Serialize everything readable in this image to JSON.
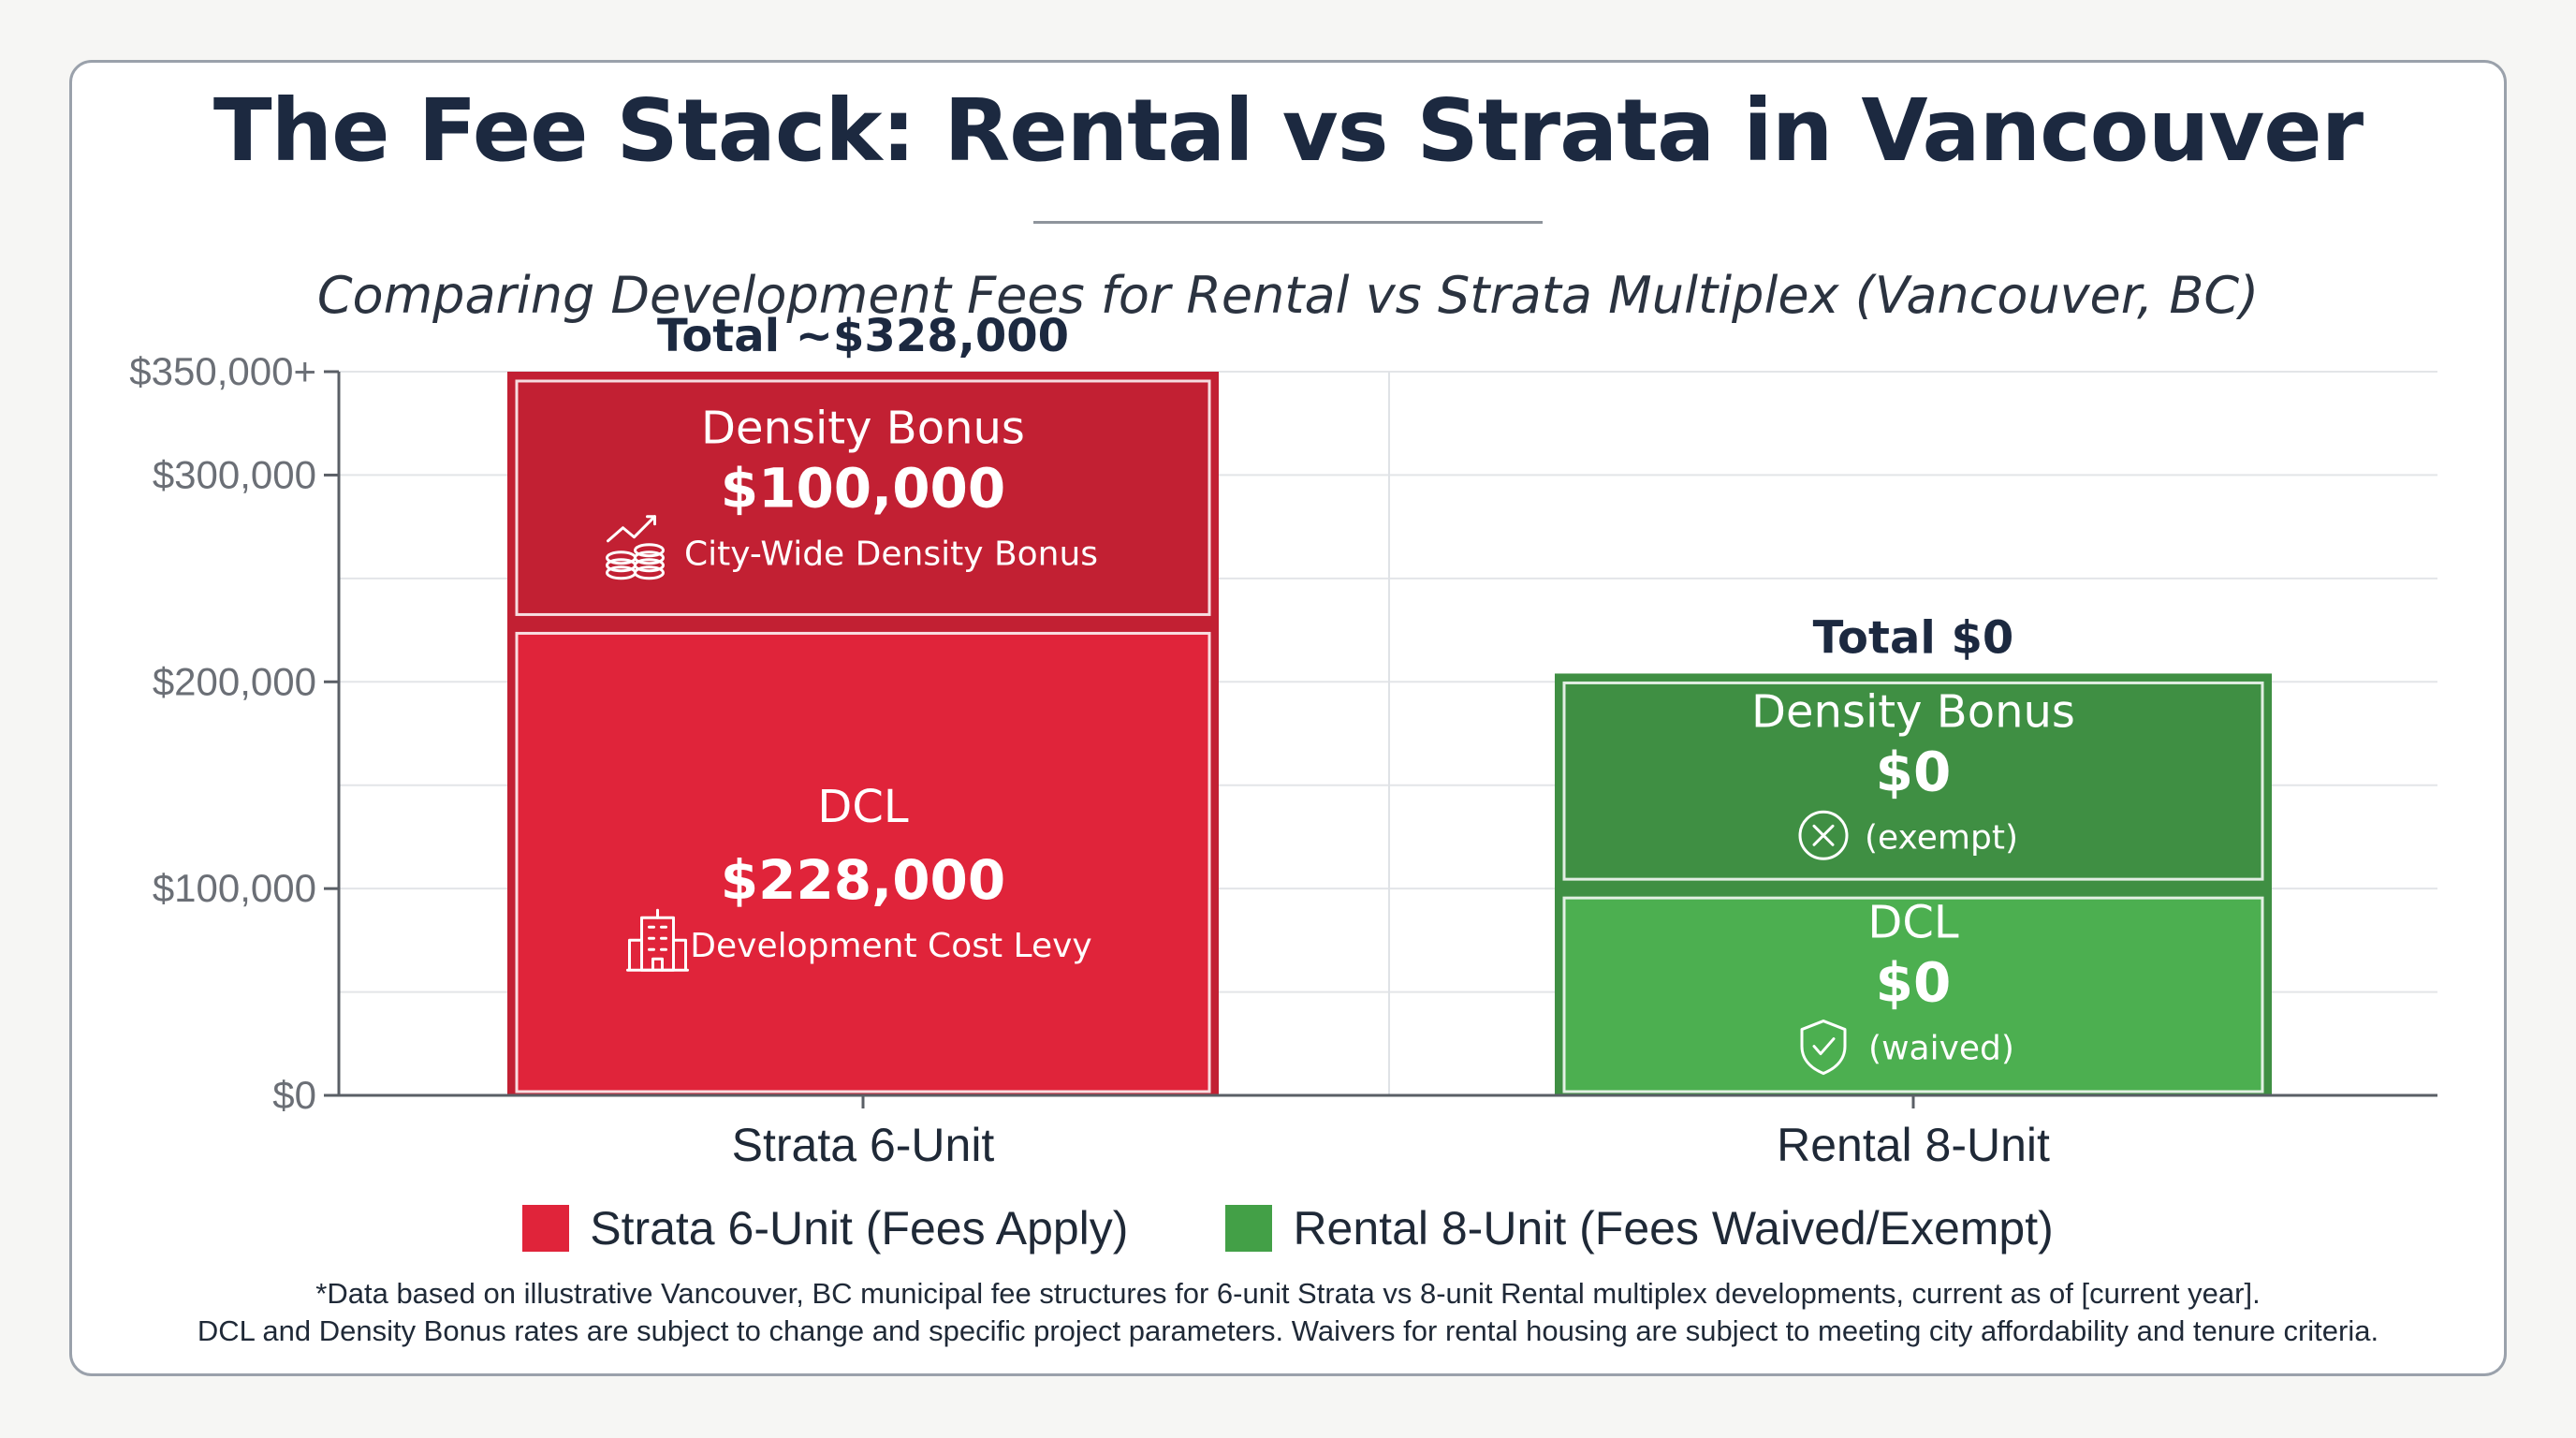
{
  "title": "The Fee Stack: Rental vs Strata in Vancouver",
  "subtitle": "Comparing Development Fees for Rental vs Strata Multiplex (Vancouver, BC)",
  "legend": [
    {
      "label": "Strata 6-Unit (Fees Apply)",
      "color": "#e0243a"
    },
    {
      "label": "Rental 8-Unit (Fees Waived/Exempt)",
      "color": "#43a047"
    }
  ],
  "footnote": [
    "*Data based on illustrative Vancouver, BC municipal fee structures for 6-unit Strata vs 8-unit Rental multiplex developments, current as of [current year].",
    "DCL and Density Bonus rates are subject to change and specific project parameters. Waivers for rental housing are subject to meeting city affordability and tenure criteria."
  ],
  "chart_data": {
    "type": "bar",
    "stacked": true,
    "categories": [
      "Strata 6-Unit",
      "Rental 8-Unit"
    ],
    "ylim": [
      0,
      350000
    ],
    "y_ticks": [
      {
        "value": 0,
        "label": "$0"
      },
      {
        "value": 100000,
        "label": "$100,000"
      },
      {
        "value": 200000,
        "label": "$200,000"
      },
      {
        "value": 300000,
        "label": "$300,000"
      },
      {
        "value": 350000,
        "label": "$350,000+"
      }
    ],
    "grid": true,
    "bars": [
      {
        "category": "Strata 6-Unit",
        "total_label": "Total ~$328,000",
        "display_height": 350000,
        "base_color": "#c22033",
        "segments": [
          {
            "name": "DCL",
            "value": 228000,
            "value_label": "$228,000",
            "note": "Development Cost Levy",
            "icon": "building-icon",
            "color": "#e0243a",
            "display_value": 228000
          },
          {
            "name": "Density Bonus",
            "value": 100000,
            "value_label": "$100,000",
            "note": "City-Wide Density Bonus",
            "icon": "coins-growth-icon",
            "color": "#c22033",
            "display_value": 122000
          }
        ]
      },
      {
        "category": "Rental 8-Unit",
        "total_label": "Total $0",
        "display_height": 204000,
        "base_color": "#3f8f43",
        "segments": [
          {
            "name": "DCL",
            "value": 0,
            "value_label": "$0",
            "note": "(waived)",
            "icon": "shield-check-icon",
            "color": "#4caf50",
            "display_value": 100000
          },
          {
            "name": "Density Bonus",
            "value": 0,
            "value_label": "$0",
            "note": "(exempt)",
            "icon": "circle-x-icon",
            "color": "#3f8f43",
            "display_value": 104000
          }
        ]
      }
    ]
  }
}
